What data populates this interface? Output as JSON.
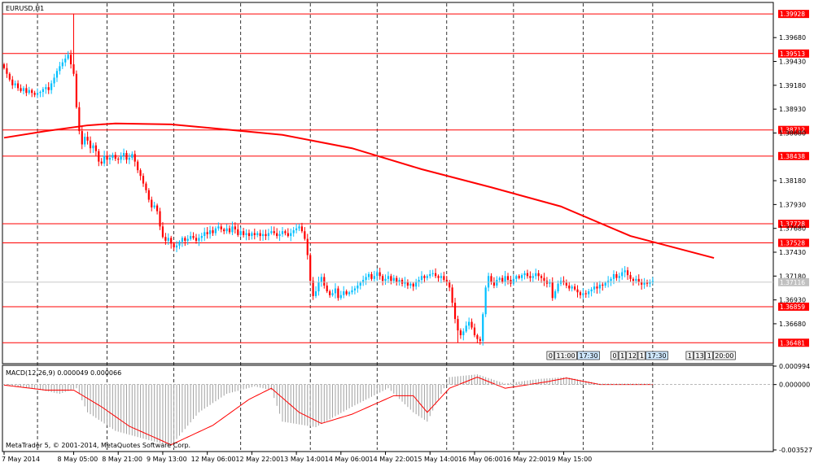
{
  "symbol_label": "EURUSD,H1",
  "indicator_label": "MACD(12,26,9) 0.000049 0.000066",
  "copyright": "MetaTrader 5, © 2001-2014, MetaQuotes Software Corp.",
  "colors": {
    "bull": "#00bfff",
    "bear": "#ff0000",
    "level": "#ff0000",
    "ma": "#ff0000",
    "macd_hist": "#a0a0a0",
    "signal": "#ff0000",
    "grid": "#000000"
  },
  "chart_data": [
    {
      "type": "candlestick",
      "ylim": [
        1.3627,
        1.4004
      ],
      "y_ticks": [
        "1.39680",
        "1.39430",
        "1.39180",
        "1.38930",
        "1.38680",
        "1.38180",
        "1.37930",
        "1.37680",
        "1.37430",
        "1.37180",
        "1.36930",
        "1.36680"
      ],
      "level_lines": [
        {
          "value": 1.39928,
          "label": "1.39928"
        },
        {
          "value": 1.39513,
          "label": "1.39513"
        },
        {
          "value": 1.38712,
          "label": "1.38712"
        },
        {
          "value": 1.38438,
          "label": "1.38438"
        },
        {
          "value": 1.37728,
          "label": "1.37728"
        },
        {
          "value": 1.37528,
          "label": "1.37528"
        },
        {
          "value": 1.36859,
          "label": "1.36859"
        },
        {
          "value": 1.36481,
          "label": "1.36481"
        }
      ],
      "current_price": {
        "value": 1.37116,
        "label": "1.37116"
      },
      "moving_average": [
        [
          0,
          1.3863
        ],
        [
          15,
          1.387
        ],
        [
          30,
          1.3876
        ],
        [
          40,
          1.3878
        ],
        [
          60,
          1.3877
        ],
        [
          75,
          1.3873
        ],
        [
          100,
          1.3866
        ],
        [
          125,
          1.3852
        ],
        [
          150,
          1.383
        ],
        [
          175,
          1.3811
        ],
        [
          200,
          1.3791
        ],
        [
          225,
          1.376
        ],
        [
          255,
          1.3737
        ]
      ],
      "closes": [
        1.3936,
        1.393,
        1.3924,
        1.3918,
        1.392,
        1.3915,
        1.3912,
        1.3915,
        1.391,
        1.3913,
        1.391,
        1.3908,
        1.391,
        1.3911,
        1.3914,
        1.3916,
        1.3913,
        1.392,
        1.3926,
        1.3933,
        1.3938,
        1.3942,
        1.3946,
        1.395,
        1.394,
        1.393,
        1.3895,
        1.387,
        1.3856,
        1.3864,
        1.386,
        1.3852,
        1.3855,
        1.3849,
        1.3838,
        1.3836,
        1.3844,
        1.384,
        1.3842,
        1.3845,
        1.3841,
        1.384,
        1.3844,
        1.3847,
        1.384,
        1.3842,
        1.3846,
        1.3838,
        1.3829,
        1.3823,
        1.3815,
        1.3808,
        1.3798,
        1.379,
        1.3792,
        1.3786,
        1.377,
        1.3759,
        1.3755,
        1.3758,
        1.3752,
        1.3748,
        1.375,
        1.3754,
        1.3758,
        1.3755,
        1.3757,
        1.376,
        1.3758,
        1.3755,
        1.3758,
        1.376,
        1.3764,
        1.3762,
        1.3766,
        1.3763,
        1.3768,
        1.377,
        1.3767,
        1.3765,
        1.3768,
        1.3764,
        1.377,
        1.3767,
        1.3761,
        1.3765,
        1.3761,
        1.3763,
        1.376,
        1.3763,
        1.3761,
        1.3763,
        1.376,
        1.3762,
        1.376,
        1.3763,
        1.3765,
        1.3763,
        1.376,
        1.3762,
        1.3765,
        1.3763,
        1.376,
        1.3763,
        1.3766,
        1.3768,
        1.377,
        1.3765,
        1.3757,
        1.374,
        1.3713,
        1.3697,
        1.3702,
        1.3712,
        1.3717,
        1.3708,
        1.3702,
        1.3698,
        1.37,
        1.3705,
        1.3695,
        1.3698,
        1.3702,
        1.3699,
        1.3701,
        1.3703,
        1.3705,
        1.3708,
        1.3711,
        1.3714,
        1.3717,
        1.372,
        1.3715,
        1.3718,
        1.3722,
        1.3718,
        1.3713,
        1.3715,
        1.3718,
        1.3713,
        1.3716,
        1.3712,
        1.3714,
        1.371,
        1.3712,
        1.3708,
        1.371,
        1.3707,
        1.3712,
        1.3714,
        1.3718,
        1.3716,
        1.3718,
        1.372,
        1.3721,
        1.3718,
        1.3716,
        1.3718,
        1.3714,
        1.3712,
        1.3706,
        1.369,
        1.3673,
        1.3661,
        1.3656,
        1.366,
        1.3666,
        1.367,
        1.3664,
        1.3656,
        1.3652,
        1.365,
        1.3678,
        1.3706,
        1.3718,
        1.3712,
        1.3708,
        1.3714,
        1.3716,
        1.3712,
        1.3718,
        1.3714,
        1.371,
        1.3715,
        1.3718,
        1.3716,
        1.3719,
        1.3721,
        1.3718,
        1.3716,
        1.3718,
        1.3721,
        1.3718,
        1.3716,
        1.3713,
        1.371,
        1.3712,
        1.3695,
        1.3702,
        1.371,
        1.3713,
        1.3711,
        1.3708,
        1.3705,
        1.3707,
        1.3704,
        1.3701,
        1.3698,
        1.37,
        1.3699,
        1.3702,
        1.3704,
        1.3707,
        1.3705,
        1.3709,
        1.3708,
        1.3711,
        1.3713,
        1.3715,
        1.372,
        1.3716,
        1.3718,
        1.3722,
        1.3724,
        1.3719,
        1.3715,
        1.3713,
        1.3715,
        1.3712,
        1.3709,
        1.3711,
        1.371,
        1.3712,
        1.3713
      ],
      "x_ticks": [
        {
          "bar": 0,
          "label": "7 May 2014"
        },
        {
          "bar": 25,
          "label": "8 May 05:00"
        },
        {
          "bar": 41,
          "label": "8 May 21:00"
        },
        {
          "bar": 57,
          "label": "9 May 13:00"
        },
        {
          "bar": 73,
          "label": "12 May 06:00"
        },
        {
          "bar": 89,
          "label": "12 May 22:00"
        },
        {
          "bar": 105,
          "label": "13 May 14:00"
        },
        {
          "bar": 121,
          "label": "14 May 06:00"
        },
        {
          "bar": 137,
          "label": "14 May 22:00"
        },
        {
          "bar": 153,
          "label": "15 May 14:00"
        },
        {
          "bar": 169,
          "label": "16 May 06:00"
        },
        {
          "bar": 185,
          "label": "16 May 22:00"
        },
        {
          "bar": 201,
          "label": "19 May 15:00"
        }
      ],
      "vertical_gridline_bars": [
        12,
        37,
        61,
        85,
        110,
        134,
        159,
        183,
        208,
        233
      ],
      "time_markers": [
        {
          "bar": 195,
          "items": [
            "0",
            "11:00",
            "17:30"
          ]
        },
        {
          "bar": 218,
          "items": [
            "0",
            "1",
            "12",
            "1",
            "17:30"
          ]
        },
        {
          "bar": 245,
          "items": [
            "1",
            "13",
            "1",
            "20:00"
          ]
        }
      ]
    },
    {
      "type": "macd",
      "ylim": [
        -0.003527,
        0.000994
      ],
      "y_ticks": [
        {
          "value": 0.000994,
          "label": "0.000994"
        },
        {
          "value": 0.0,
          "label": "0.000000"
        },
        {
          "value": -0.003527,
          "label": "-0.003527"
        }
      ],
      "histogram": [
        [
          0,
          -3e-05
        ],
        [
          10,
          -0.0002
        ],
        [
          20,
          -0.0005
        ],
        [
          26,
          -0.0002
        ],
        [
          30,
          -0.0015
        ],
        [
          40,
          -0.0025
        ],
        [
          52,
          -0.003
        ],
        [
          60,
          -0.0033
        ],
        [
          70,
          -0.0015
        ],
        [
          80,
          -0.0005
        ],
        [
          90,
          -0.0001
        ],
        [
          96,
          -0.0003
        ],
        [
          100,
          -0.002
        ],
        [
          112,
          -0.0023
        ],
        [
          125,
          -0.0012
        ],
        [
          138,
          -0.0002
        ],
        [
          147,
          -0.0015
        ],
        [
          152,
          -0.002
        ],
        [
          160,
          0.0004
        ],
        [
          170,
          0.00055
        ],
        [
          180,
          5e-05
        ],
        [
          192,
          0.0003
        ],
        [
          202,
          0.0004
        ],
        [
          214,
          5e-05
        ]
      ],
      "signal": [
        [
          0,
          -3e-05
        ],
        [
          15,
          -0.0003
        ],
        [
          25,
          -0.0003
        ],
        [
          35,
          -0.0012
        ],
        [
          45,
          -0.00225
        ],
        [
          60,
          -0.00325
        ],
        [
          75,
          -0.0022
        ],
        [
          88,
          -0.0008
        ],
        [
          96,
          -0.0002
        ],
        [
          106,
          -0.0015
        ],
        [
          114,
          -0.0021
        ],
        [
          125,
          -0.0016
        ],
        [
          140,
          -0.0006
        ],
        [
          147,
          -0.0006
        ],
        [
          152,
          -0.0015
        ],
        [
          160,
          -0.0002
        ],
        [
          170,
          0.0004
        ],
        [
          180,
          -0.0002
        ],
        [
          195,
          0.00015
        ],
        [
          202,
          0.00035
        ],
        [
          214,
          0.0
        ]
      ]
    }
  ]
}
